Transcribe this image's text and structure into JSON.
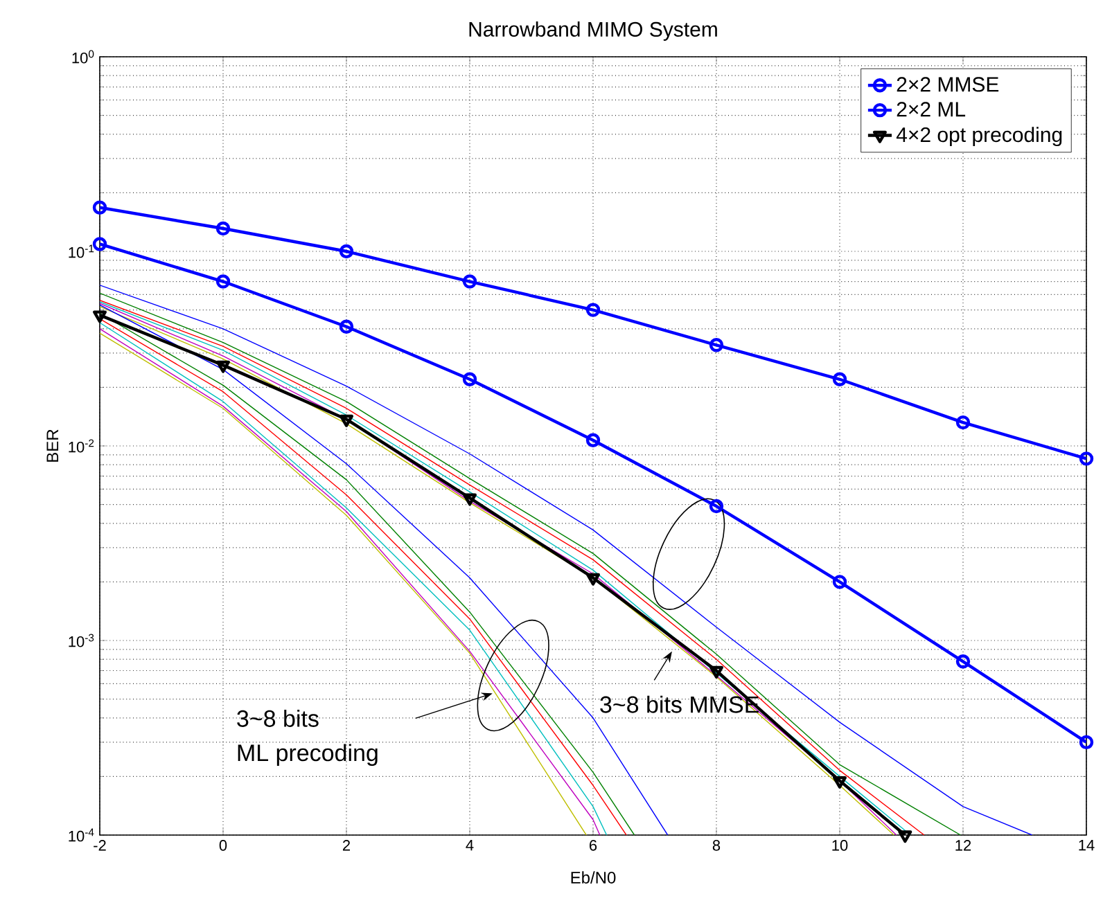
{
  "chart_data": {
    "type": "line",
    "title": "Narrowband MIMO System",
    "xlabel": "Eb/N0",
    "ylabel": "BER",
    "log": "y",
    "grid": true,
    "legend": "top right",
    "xlim": [
      -2,
      14
    ],
    "xticks": [
      -2,
      0,
      2,
      4,
      6,
      8,
      10,
      12,
      14
    ],
    "ylim": [
      0.0001,
      1
    ],
    "yticks": [
      {
        "value": 0.0001,
        "label": "10$^{-4}$"
      },
      {
        "value": 0.001,
        "label": "10$^{-3}$"
      },
      {
        "value": 0.01,
        "label": "10$^{-2}$"
      },
      {
        "value": 0.1,
        "label": "10$^{-1}$"
      },
      {
        "value": 1,
        "label": "10$^{0}$"
      }
    ],
    "series": [
      {
        "color": "#0000ff",
        "marker": "none",
        "x": [
          -2,
          0,
          2,
          4,
          6,
          8,
          10,
          12,
          13.12
        ],
        "values": [
          0.067,
          0.04,
          0.0203,
          0.0091,
          0.0037,
          0.00117,
          0.00038,
          0.00014,
          0.0001
        ]
      },
      {
        "color": "#008000",
        "marker": "none",
        "x": [
          -2,
          0,
          2,
          4,
          6,
          8,
          10,
          11.96
        ],
        "values": [
          0.061,
          0.034,
          0.0169,
          0.0068,
          0.0028,
          0.00085,
          0.00023,
          0.0001
        ]
      },
      {
        "color": "#ff0000",
        "marker": "none",
        "x": [
          -2,
          0,
          2,
          4,
          6,
          8,
          10,
          11.37
        ],
        "values": [
          0.056,
          0.0325,
          0.0156,
          0.0063,
          0.0026,
          0.0008,
          0.000215,
          0.0001
        ]
      },
      {
        "color": "#00bfbf",
        "marker": "none",
        "x": [
          -2,
          0,
          2,
          4,
          6,
          8,
          10,
          11.15
        ],
        "values": [
          0.055,
          0.031,
          0.0144,
          0.0058,
          0.0023,
          0.00068,
          0.0002,
          0.0001
        ]
      },
      {
        "color": "#bf00bf",
        "marker": "none",
        "x": [
          -2,
          0,
          2,
          4,
          6,
          8,
          10,
          10.92
        ],
        "values": [
          0.054,
          0.029,
          0.0137,
          0.0052,
          0.0022,
          0.00066,
          0.00019,
          0.0001
        ]
      },
      {
        "color": "#bfbf00",
        "marker": "none",
        "x": [
          -2,
          0,
          2,
          4,
          6,
          8,
          10,
          10.88
        ],
        "values": [
          0.052,
          0.028,
          0.013,
          0.0051,
          0.0021,
          0.00065,
          0.00018,
          0.0001
        ]
      },
      {
        "color": "#0000ff",
        "marker": "none",
        "x": [
          -2,
          0,
          2,
          4,
          6,
          7.21
        ],
        "values": [
          0.053,
          0.0247,
          0.0081,
          0.0021,
          0.0004,
          0.0001
        ]
      },
      {
        "color": "#008000",
        "marker": "none",
        "x": [
          -2,
          0,
          2,
          4,
          6,
          6.67
        ],
        "values": [
          0.048,
          0.0205,
          0.0067,
          0.0014,
          0.00021,
          0.0001
        ]
      },
      {
        "color": "#ff0000",
        "marker": "none",
        "x": [
          -2,
          0,
          2,
          4,
          6,
          6.54
        ],
        "values": [
          0.045,
          0.019,
          0.0056,
          0.00129,
          0.00018,
          0.0001
        ]
      },
      {
        "color": "#00bfbf",
        "marker": "none",
        "x": [
          -2,
          0,
          2,
          4,
          6,
          6.22
        ],
        "values": [
          0.043,
          0.0169,
          0.0048,
          0.00113,
          0.00014,
          0.0001
        ]
      },
      {
        "color": "#bf00bf",
        "marker": "none",
        "x": [
          -2,
          0,
          2,
          4,
          6,
          6.11
        ],
        "values": [
          0.04,
          0.016,
          0.0046,
          0.00088,
          0.00012,
          0.0001
        ]
      },
      {
        "color": "#bfbf00",
        "marker": "none",
        "x": [
          -2,
          0,
          2,
          4,
          5.89
        ],
        "values": [
          0.038,
          0.0156,
          0.0044,
          0.00086,
          0.0001
        ]
      },
      {
        "name": "2×2 MMSE",
        "color": "#0000ff",
        "marker": "circle",
        "x": [
          -2,
          0,
          2,
          4,
          6,
          8,
          10,
          12,
          14
        ],
        "values": [
          0.168,
          0.131,
          0.1,
          0.07,
          0.05,
          0.033,
          0.022,
          0.0132,
          0.0086
        ]
      },
      {
        "name": "2×2 ML",
        "color": "#0000ff",
        "marker": "circle",
        "x": [
          -2,
          0,
          2,
          4,
          6,
          8,
          10,
          12,
          14
        ],
        "values": [
          0.109,
          0.07,
          0.041,
          0.022,
          0.0107,
          0.0049,
          0.002,
          0.00078,
          0.0003
        ]
      },
      {
        "name": "4×2 opt precoding",
        "color": "#000000",
        "marker": "triangle",
        "x": [
          -2,
          0,
          2,
          4,
          6,
          8,
          10,
          11.06
        ],
        "values": [
          0.047,
          0.026,
          0.0137,
          0.0054,
          0.0021,
          0.0007,
          0.00019,
          0.0001
        ]
      }
    ],
    "annotations": [
      "3~8 bits",
      "ML precoding",
      "3~8 bits MMSE"
    ]
  }
}
